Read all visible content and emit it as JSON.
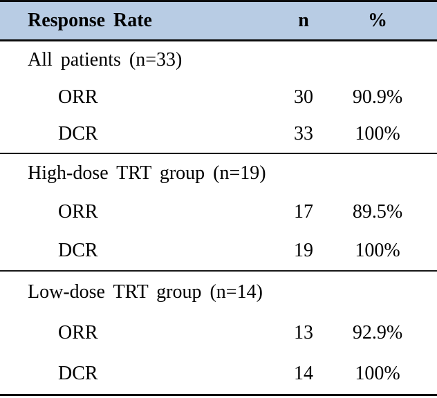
{
  "colors": {
    "header_bg": "#b8cce4",
    "rule_line": "#000000",
    "text": "#000000"
  },
  "table": {
    "header": {
      "response_rate": "Response Rate",
      "n": "n",
      "percent": "%"
    },
    "sections": [
      {
        "group": "All patients (n=33)",
        "rows": [
          {
            "label": "ORR",
            "n": "30",
            "pct": "90.9%"
          },
          {
            "label": "DCR",
            "n": "33",
            "pct": "100%"
          }
        ]
      },
      {
        "group": "High-dose TRT group (n=19)",
        "rows": [
          {
            "label": "ORR",
            "n": "17",
            "pct": "89.5%"
          },
          {
            "label": "DCR",
            "n": "19",
            "pct": "100%"
          }
        ]
      },
      {
        "group": "Low-dose TRT group (n=14)",
        "rows": [
          {
            "label": "ORR",
            "n": "13",
            "pct": "92.9%"
          },
          {
            "label": "DCR",
            "n": "14",
            "pct": "100%"
          }
        ]
      }
    ]
  }
}
